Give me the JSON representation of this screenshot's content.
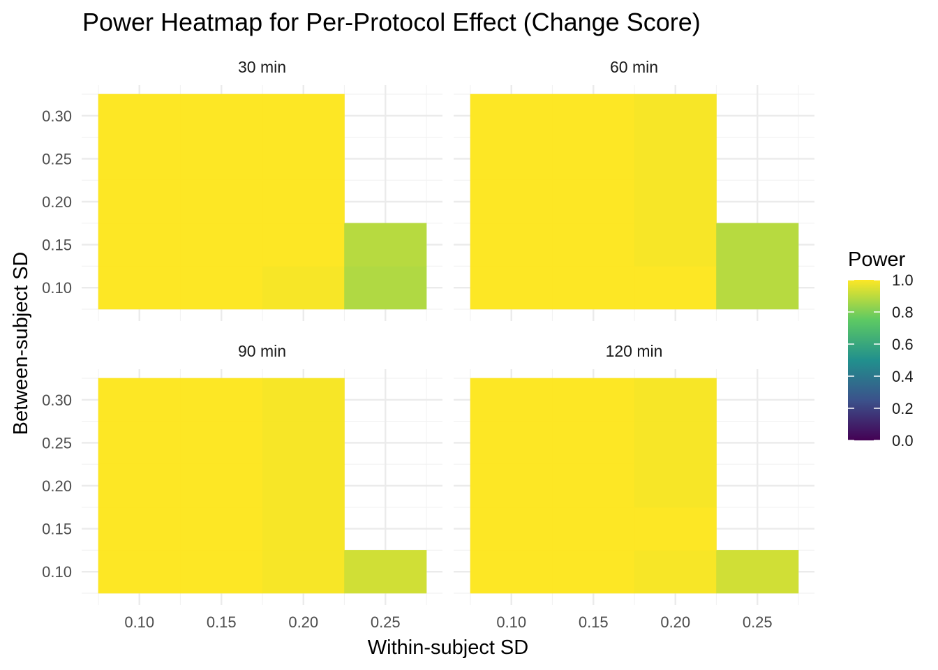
{
  "chart_data": {
    "type": "heatmap",
    "title": "Power Heatmap for Per-Protocol Effect (Change Score)",
    "xlabel": "Within-subject SD",
    "ylabel": "Between-subject SD",
    "x_ticks": [
      "0.10",
      "0.15",
      "0.20",
      "0.25"
    ],
    "y_ticks": [
      "0.10",
      "0.15",
      "0.20",
      "0.25",
      "0.30"
    ],
    "xlim": [
      0.075,
      0.275
    ],
    "ylim": [
      0.075,
      0.325
    ],
    "tile_width": 0.05,
    "tile_height": 0.05,
    "grid": true,
    "legend": {
      "title": "Power",
      "position": "right",
      "ticks": [
        "1.0",
        "0.8",
        "0.6",
        "0.4",
        "0.2",
        "0.0"
      ],
      "range": [
        0,
        1
      ],
      "colorscale": [
        "#440154",
        "#3b528b",
        "#21908d",
        "#5dc963",
        "#fde725"
      ]
    },
    "panels": [
      {
        "label": "30 min",
        "tiles": [
          {
            "x": 0.1,
            "y": 0.1,
            "power": 1.0
          },
          {
            "x": 0.15,
            "y": 0.1,
            "power": 1.0
          },
          {
            "x": 0.2,
            "y": 0.1,
            "power": 0.99
          },
          {
            "x": 0.25,
            "y": 0.1,
            "power": 0.88
          },
          {
            "x": 0.1,
            "y": 0.15,
            "power": 1.0
          },
          {
            "x": 0.15,
            "y": 0.15,
            "power": 1.0
          },
          {
            "x": 0.2,
            "y": 0.15,
            "power": 1.0
          },
          {
            "x": 0.25,
            "y": 0.15,
            "power": 0.89
          },
          {
            "x": 0.1,
            "y": 0.2,
            "power": 1.0
          },
          {
            "x": 0.15,
            "y": 0.2,
            "power": 1.0
          },
          {
            "x": 0.2,
            "y": 0.2,
            "power": 1.0
          },
          {
            "x": 0.1,
            "y": 0.25,
            "power": 1.0
          },
          {
            "x": 0.15,
            "y": 0.25,
            "power": 1.0
          },
          {
            "x": 0.2,
            "y": 0.25,
            "power": 1.0
          },
          {
            "x": 0.1,
            "y": 0.3,
            "power": 1.0
          },
          {
            "x": 0.15,
            "y": 0.3,
            "power": 1.0
          },
          {
            "x": 0.2,
            "y": 0.3,
            "power": 1.0
          }
        ]
      },
      {
        "label": "60 min",
        "tiles": [
          {
            "x": 0.1,
            "y": 0.1,
            "power": 1.0
          },
          {
            "x": 0.15,
            "y": 0.1,
            "power": 1.0
          },
          {
            "x": 0.2,
            "y": 0.1,
            "power": 1.0
          },
          {
            "x": 0.25,
            "y": 0.1,
            "power": 0.89
          },
          {
            "x": 0.1,
            "y": 0.15,
            "power": 1.0
          },
          {
            "x": 0.15,
            "y": 0.15,
            "power": 1.0
          },
          {
            "x": 0.2,
            "y": 0.15,
            "power": 0.99
          },
          {
            "x": 0.25,
            "y": 0.15,
            "power": 0.89
          },
          {
            "x": 0.1,
            "y": 0.2,
            "power": 1.0
          },
          {
            "x": 0.15,
            "y": 0.2,
            "power": 1.0
          },
          {
            "x": 0.2,
            "y": 0.2,
            "power": 0.99
          },
          {
            "x": 0.1,
            "y": 0.25,
            "power": 1.0
          },
          {
            "x": 0.15,
            "y": 0.25,
            "power": 1.0
          },
          {
            "x": 0.2,
            "y": 0.25,
            "power": 0.99
          },
          {
            "x": 0.1,
            "y": 0.3,
            "power": 1.0
          },
          {
            "x": 0.15,
            "y": 0.3,
            "power": 1.0
          },
          {
            "x": 0.2,
            "y": 0.3,
            "power": 0.99
          }
        ]
      },
      {
        "label": "90 min",
        "tiles": [
          {
            "x": 0.1,
            "y": 0.1,
            "power": 1.0
          },
          {
            "x": 0.15,
            "y": 0.1,
            "power": 1.0
          },
          {
            "x": 0.2,
            "y": 0.1,
            "power": 0.99
          },
          {
            "x": 0.25,
            "y": 0.1,
            "power": 0.93
          },
          {
            "x": 0.1,
            "y": 0.15,
            "power": 1.0
          },
          {
            "x": 0.15,
            "y": 0.15,
            "power": 1.0
          },
          {
            "x": 0.2,
            "y": 0.15,
            "power": 0.99
          },
          {
            "x": 0.1,
            "y": 0.2,
            "power": 1.0
          },
          {
            "x": 0.15,
            "y": 0.2,
            "power": 1.0
          },
          {
            "x": 0.2,
            "y": 0.2,
            "power": 0.99
          },
          {
            "x": 0.1,
            "y": 0.25,
            "power": 1.0
          },
          {
            "x": 0.15,
            "y": 0.25,
            "power": 1.0
          },
          {
            "x": 0.2,
            "y": 0.25,
            "power": 0.99
          },
          {
            "x": 0.1,
            "y": 0.3,
            "power": 1.0
          },
          {
            "x": 0.15,
            "y": 0.3,
            "power": 1.0
          },
          {
            "x": 0.2,
            "y": 0.3,
            "power": 0.99
          }
        ]
      },
      {
        "label": "120 min",
        "tiles": [
          {
            "x": 0.1,
            "y": 0.1,
            "power": 1.0
          },
          {
            "x": 0.15,
            "y": 0.1,
            "power": 1.0
          },
          {
            "x": 0.2,
            "y": 0.1,
            "power": 0.99
          },
          {
            "x": 0.25,
            "y": 0.1,
            "power": 0.93
          },
          {
            "x": 0.1,
            "y": 0.15,
            "power": 1.0
          },
          {
            "x": 0.15,
            "y": 0.15,
            "power": 1.0
          },
          {
            "x": 0.2,
            "y": 0.15,
            "power": 1.0
          },
          {
            "x": 0.1,
            "y": 0.2,
            "power": 1.0
          },
          {
            "x": 0.15,
            "y": 0.2,
            "power": 1.0
          },
          {
            "x": 0.2,
            "y": 0.2,
            "power": 0.99
          },
          {
            "x": 0.1,
            "y": 0.25,
            "power": 1.0
          },
          {
            "x": 0.15,
            "y": 0.25,
            "power": 1.0
          },
          {
            "x": 0.2,
            "y": 0.25,
            "power": 0.99
          },
          {
            "x": 0.1,
            "y": 0.3,
            "power": 1.0
          },
          {
            "x": 0.15,
            "y": 0.3,
            "power": 1.0
          },
          {
            "x": 0.2,
            "y": 0.3,
            "power": 0.99
          }
        ]
      }
    ]
  }
}
